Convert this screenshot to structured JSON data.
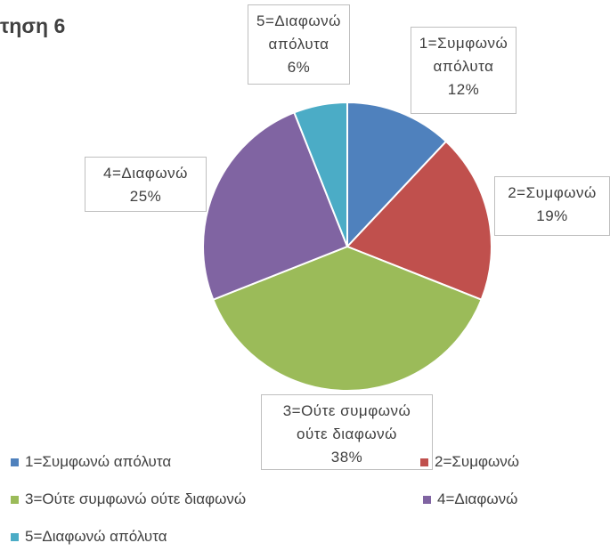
{
  "chart_data": {
    "type": "pie",
    "title": "τηση 6",
    "categories": [
      "1=Συμφωνώ απόλυτα",
      "2=Συμφωνώ",
      "3=Ούτε συμφωνώ ούτε διαφωνώ",
      "4=Διαφωνώ",
      "5=Διαφωνώ απόλυτα"
    ],
    "values": [
      12,
      19,
      38,
      25,
      6
    ],
    "value_labels": [
      "12%",
      "19%",
      "38%",
      "25%",
      "6%"
    ],
    "colors": [
      "#4f81bd",
      "#c0504d",
      "#9bbb59",
      "#8064a2",
      "#4bacc6"
    ],
    "legend": "bottom"
  }
}
